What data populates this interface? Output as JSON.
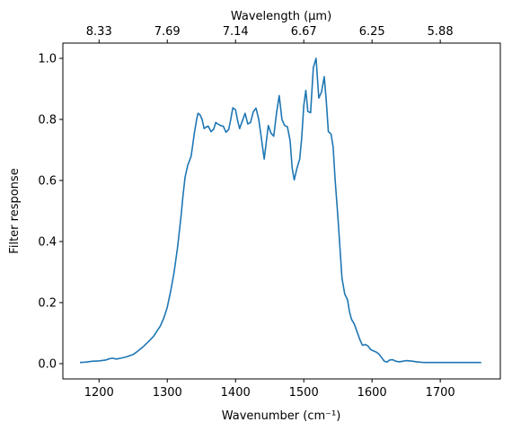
{
  "chart_data": {
    "type": "line",
    "xlabel": "Wavenumber (cm⁻¹)",
    "ylabel": "Filter response",
    "top_xlabel": "Wavelength (μm)",
    "xlim": [
      1147,
      1788
    ],
    "ylim": [
      -0.05,
      1.05
    ],
    "grid": false,
    "x_ticks": [
      {
        "value": 1200,
        "label": "1200"
      },
      {
        "value": 1300,
        "label": "1300"
      },
      {
        "value": 1400,
        "label": "1400"
      },
      {
        "value": 1500,
        "label": "1500"
      },
      {
        "value": 1600,
        "label": "1600"
      },
      {
        "value": 1700,
        "label": "1700"
      }
    ],
    "y_ticks": [
      {
        "value": 0.0,
        "label": "0.0"
      },
      {
        "value": 0.2,
        "label": "0.2"
      },
      {
        "value": 0.4,
        "label": "0.4"
      },
      {
        "value": 0.6,
        "label": "0.6"
      },
      {
        "value": 0.8,
        "label": "0.8"
      },
      {
        "value": 1.0,
        "label": "1.0"
      }
    ],
    "top_ticks": [
      {
        "value": 1200,
        "label": "8.33"
      },
      {
        "value": 1300,
        "label": "7.69"
      },
      {
        "value": 1400,
        "label": "7.14"
      },
      {
        "value": 1500,
        "label": "6.67"
      },
      {
        "value": 1600,
        "label": "6.25"
      },
      {
        "value": 1700,
        "label": "5.88"
      }
    ],
    "series": [
      {
        "color": "#1f77b4",
        "x": [
          1172,
          1180,
          1190,
          1200,
          1210,
          1215,
          1220,
          1225,
          1230,
          1240,
          1250,
          1255,
          1260,
          1265,
          1270,
          1275,
          1280,
          1285,
          1290,
          1295,
          1300,
          1305,
          1310,
          1315,
          1320,
          1323,
          1326,
          1330,
          1335,
          1340,
          1343,
          1345,
          1348,
          1351,
          1354,
          1357,
          1360,
          1364,
          1368,
          1371,
          1374,
          1378,
          1382,
          1386,
          1390,
          1393,
          1396,
          1400,
          1403,
          1406,
          1410,
          1414,
          1418,
          1422,
          1426,
          1430,
          1434,
          1438,
          1442,
          1445,
          1448,
          1452,
          1456,
          1460,
          1464,
          1468,
          1472,
          1476,
          1480,
          1483,
          1486,
          1490,
          1494,
          1497,
          1500,
          1503,
          1506,
          1510,
          1514,
          1518,
          1522,
          1526,
          1530,
          1533,
          1536,
          1540,
          1543,
          1546,
          1550,
          1553,
          1556,
          1560,
          1564,
          1567,
          1570,
          1574,
          1578,
          1582,
          1586,
          1590,
          1594,
          1598,
          1602,
          1606,
          1610,
          1614,
          1618,
          1622,
          1626,
          1630,
          1635,
          1640,
          1645,
          1650,
          1655,
          1660,
          1665,
          1670,
          1675,
          1680,
          1685,
          1690,
          1695,
          1700,
          1705,
          1710,
          1715,
          1720,
          1725,
          1730,
          1740,
          1750,
          1760
        ],
        "y": [
          0.004,
          0.005,
          0.008,
          0.009,
          0.012,
          0.016,
          0.018,
          0.015,
          0.017,
          0.022,
          0.03,
          0.038,
          0.047,
          0.056,
          0.067,
          0.078,
          0.09,
          0.107,
          0.124,
          0.15,
          0.185,
          0.238,
          0.3,
          0.38,
          0.48,
          0.55,
          0.61,
          0.65,
          0.68,
          0.76,
          0.8,
          0.82,
          0.815,
          0.8,
          0.77,
          0.775,
          0.778,
          0.76,
          0.768,
          0.79,
          0.785,
          0.78,
          0.778,
          0.758,
          0.767,
          0.8,
          0.838,
          0.832,
          0.796,
          0.77,
          0.795,
          0.82,
          0.785,
          0.79,
          0.825,
          0.837,
          0.8,
          0.736,
          0.67,
          0.725,
          0.78,
          0.755,
          0.745,
          0.82,
          0.878,
          0.8,
          0.78,
          0.776,
          0.73,
          0.64,
          0.602,
          0.64,
          0.67,
          0.74,
          0.845,
          0.895,
          0.826,
          0.822,
          0.97,
          1.0,
          0.87,
          0.89,
          0.94,
          0.86,
          0.76,
          0.752,
          0.71,
          0.6,
          0.48,
          0.38,
          0.28,
          0.228,
          0.21,
          0.17,
          0.145,
          0.13,
          0.105,
          0.08,
          0.06,
          0.063,
          0.058,
          0.046,
          0.042,
          0.038,
          0.032,
          0.02,
          0.008,
          0.005,
          0.012,
          0.013,
          0.008,
          0.006,
          0.008,
          0.01,
          0.009,
          0.008,
          0.006,
          0.005,
          0.004,
          0.004,
          0.004,
          0.004,
          0.004,
          0.004,
          0.004,
          0.004,
          0.004,
          0.004,
          0.004,
          0.004,
          0.004,
          0.004,
          0.004
        ]
      }
    ]
  }
}
